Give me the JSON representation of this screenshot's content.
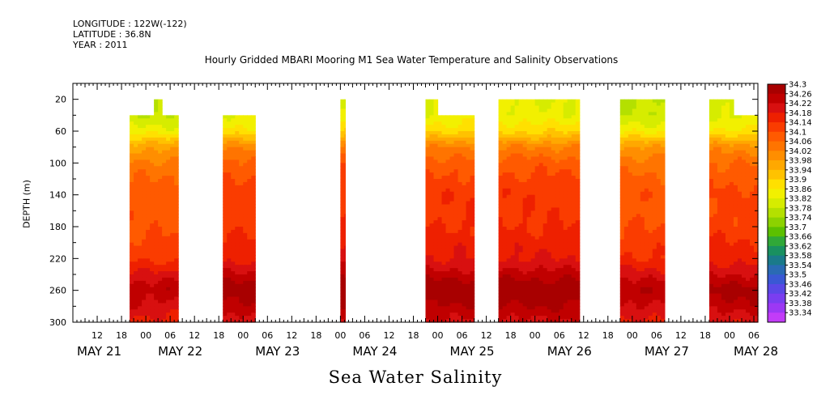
{
  "header": {
    "longitude": "LONGITUDE : 122W(-122)",
    "latitude": "LATITUDE : 36.8N",
    "year": "YEAR : 2011"
  },
  "title": "Hourly Gridded MBARI Mooring M1 Sea Water Temperature and Salinity Observations",
  "caption": "Sea Water Salinity",
  "chart_data": {
    "type": "heatmap",
    "title": "Hourly Gridded MBARI Mooring M1 Sea Water Temperature and Salinity Observations",
    "xlabel": "",
    "ylabel": "DEPTH (m)",
    "colorbar_label": "Sea Water Salinity",
    "x_unit": "hours since MAY 21 06:00 (axis start)",
    "xlim": [
      0,
      169
    ],
    "ylim": [
      300,
      0
    ],
    "y_ticks": [
      20,
      60,
      100,
      140,
      180,
      220,
      260,
      300
    ],
    "x_hour_ticks": [
      {
        "h": 6,
        "label": "12"
      },
      {
        "h": 12,
        "label": "18"
      },
      {
        "h": 18,
        "label": "00"
      },
      {
        "h": 24,
        "label": "06"
      },
      {
        "h": 30,
        "label": "12"
      },
      {
        "h": 36,
        "label": "18"
      },
      {
        "h": 42,
        "label": "00"
      },
      {
        "h": 48,
        "label": "06"
      },
      {
        "h": 54,
        "label": "12"
      },
      {
        "h": 60,
        "label": "18"
      },
      {
        "h": 66,
        "label": "00"
      },
      {
        "h": 72,
        "label": "06"
      },
      {
        "h": 78,
        "label": "12"
      },
      {
        "h": 84,
        "label": "18"
      },
      {
        "h": 90,
        "label": "00"
      },
      {
        "h": 96,
        "label": "06"
      },
      {
        "h": 102,
        "label": "12"
      },
      {
        "h": 108,
        "label": "18"
      },
      {
        "h": 114,
        "label": "00"
      },
      {
        "h": 120,
        "label": "06"
      },
      {
        "h": 126,
        "label": "12"
      },
      {
        "h": 132,
        "label": "18"
      },
      {
        "h": 138,
        "label": "00"
      },
      {
        "h": 144,
        "label": "06"
      },
      {
        "h": 150,
        "label": "12"
      },
      {
        "h": 156,
        "label": "18"
      },
      {
        "h": 162,
        "label": "00"
      },
      {
        "h": 168,
        "label": "06"
      }
    ],
    "x_day_labels": [
      {
        "h": 1,
        "label": "MAY 21"
      },
      {
        "h": 21,
        "label": "MAY 22"
      },
      {
        "h": 45,
        "label": "MAY 23"
      },
      {
        "h": 69,
        "label": "MAY 24"
      },
      {
        "h": 93,
        "label": "MAY 25"
      },
      {
        "h": 117,
        "label": "MAY 26"
      },
      {
        "h": 141,
        "label": "MAY 27"
      },
      {
        "h": 163,
        "label": "MAY 28"
      }
    ],
    "depth_levels": [
      20,
      40,
      60,
      80,
      100,
      120,
      140,
      160,
      180,
      200,
      220,
      240,
      260,
      280,
      300
    ],
    "profile": [
      33.79,
      33.8,
      33.86,
      33.99,
      34.05,
      34.08,
      34.1,
      34.1,
      34.11,
      34.13,
      34.15,
      34.21,
      34.27,
      34.23,
      34.18
    ],
    "data_blocks": [
      {
        "start": 14,
        "end": 26,
        "top": 40,
        "offset": -0.02,
        "notch": {
          "start": 20,
          "end": 22,
          "top": 20
        }
      },
      {
        "start": 37,
        "end": 45,
        "top": 40,
        "offset": 0.02
      },
      {
        "start": 66,
        "end": 67.2,
        "top": 20,
        "offset": 0.04
      },
      {
        "start": 87,
        "end": 99,
        "top": 20,
        "offset": 0.03,
        "notch": {
          "start": 90,
          "end": 99,
          "top": 40
        }
      },
      {
        "start": 105,
        "end": 125,
        "top": 20,
        "offset": 0.03
      },
      {
        "start": 135,
        "end": 146,
        "top": 20,
        "offset": -0.01
      },
      {
        "start": 157,
        "end": 169,
        "top": 20,
        "offset": 0.01,
        "notch": {
          "start": 163,
          "end": 169,
          "top": 40
        }
      }
    ],
    "colorbar": {
      "levels": [
        "34.3",
        "34.26",
        "34.22",
        "34.18",
        "34.14",
        "34.1",
        "34.06",
        "34.02",
        "33.98",
        "33.94",
        "33.9",
        "33.86",
        "33.82",
        "33.78",
        "33.74",
        "33.7",
        "33.66",
        "33.62",
        "33.58",
        "33.54",
        "33.5",
        "33.46",
        "33.42",
        "33.38",
        "33.34"
      ],
      "colors": [
        "#a80000",
        "#c00000",
        "#d81010",
        "#ee2000",
        "#fa3c00",
        "#ff5a00",
        "#ff7400",
        "#ff8e00",
        "#ffa800",
        "#ffc200",
        "#ffe000",
        "#f2f000",
        "#d6ec00",
        "#b4e000",
        "#8cd200",
        "#5cc000",
        "#30a838",
        "#199060",
        "#1a7a8a",
        "#2a6ab4",
        "#3a58d4",
        "#5a48e6",
        "#7a3ef0",
        "#9c38f4",
        "#c23cf8"
      ]
    }
  }
}
